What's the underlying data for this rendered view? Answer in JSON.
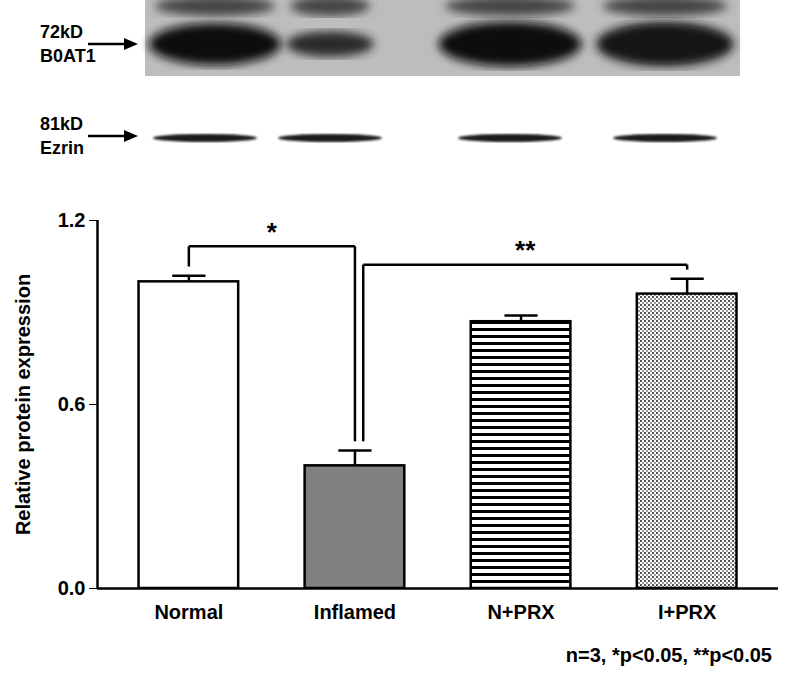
{
  "chart_data": {
    "type": "bar",
    "categories": [
      "Normal",
      "Inflamed",
      "N+PRX",
      "I+PRX"
    ],
    "values": [
      1.0,
      0.4,
      0.87,
      0.96
    ],
    "errors": [
      0.02,
      0.05,
      0.02,
      0.05
    ],
    "colors": [
      "#ffffff",
      "#808080",
      "#ffffff",
      "#ffffff"
    ],
    "y_label": "Relative protein expression",
    "ylim": [
      0,
      1.2
    ],
    "yticks": [
      {
        "value": 0,
        "label": "0.0"
      },
      0.6,
      1.2
    ],
    "annotations": [
      {
        "text": "*",
        "from": "Normal",
        "to": "Inflamed"
      },
      {
        "text": "**",
        "from": "Inflamed",
        "to": "I+PRX"
      }
    ],
    "caption": "n=3, *p<0.05, **p<0.05",
    "blot": [
      {
        "size": "72kD",
        "protein": "B0AT1"
      },
      {
        "size": "81kD",
        "protein": "Ezrin"
      }
    ]
  }
}
